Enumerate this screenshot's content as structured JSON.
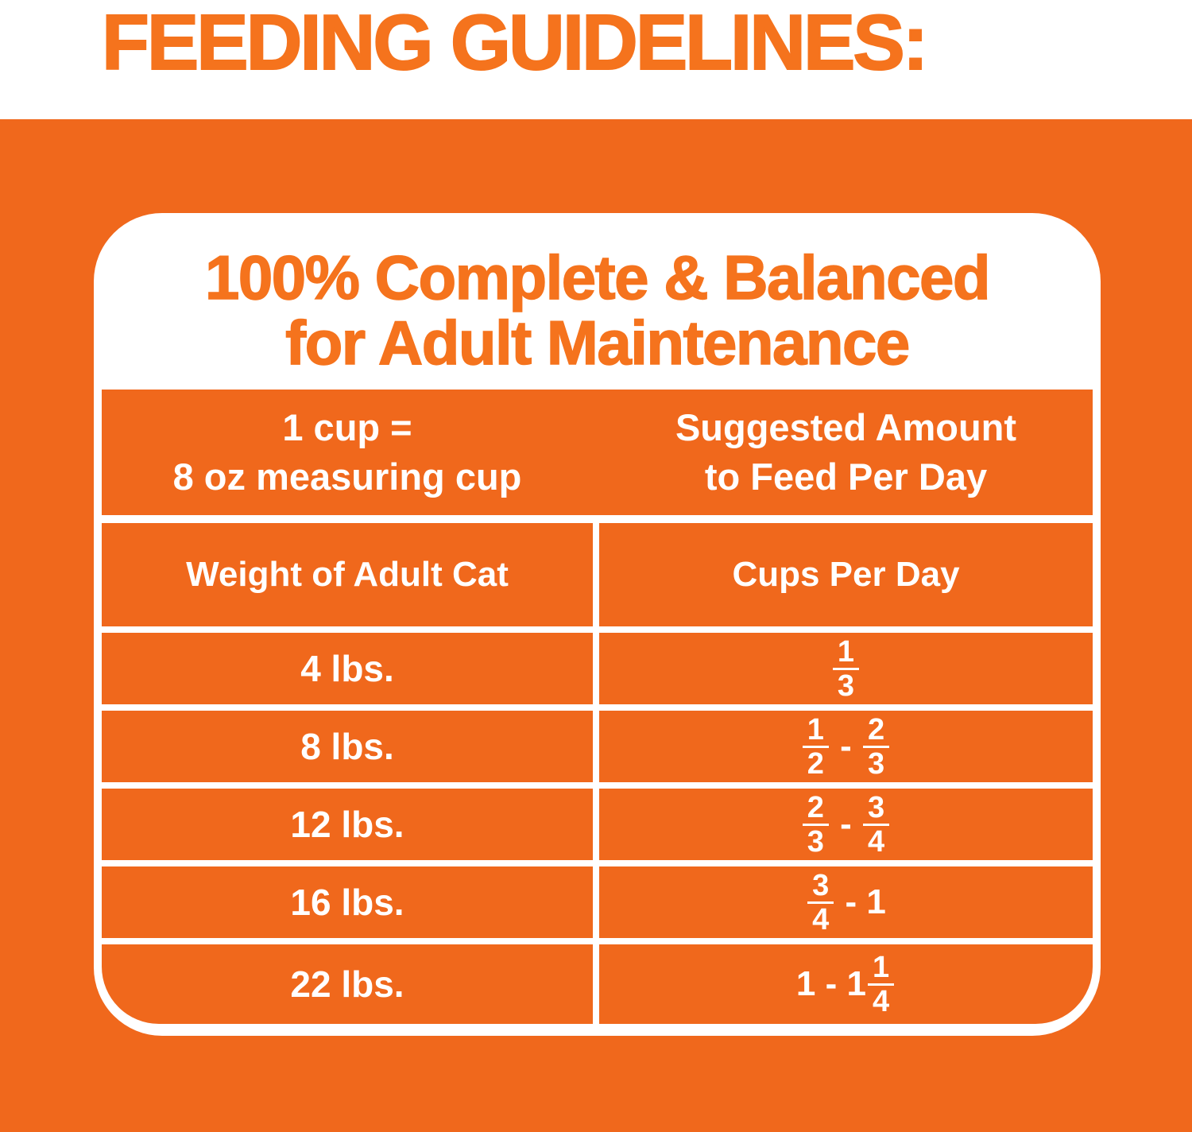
{
  "header": {
    "title": "FEEDING GUIDELINES:"
  },
  "colors": {
    "orange": "#F0681C",
    "accent": "#F5731D",
    "white": "#FFFFFF"
  },
  "card": {
    "title_line1": "100% Complete & Balanced",
    "title_line2": "for Adult Maintenance"
  },
  "band": {
    "left_line1": "1 cup =",
    "left_line2": "8 oz measuring cup",
    "right_line1": "Suggested Amount",
    "right_line2": "to Feed Per Day"
  },
  "table": {
    "col1_header": "Weight of Adult Cat",
    "col2_header": "Cups Per Day",
    "rows": [
      {
        "weight": "4 lbs.",
        "cups_text": "1/3",
        "cups_tokens": [
          "1/3"
        ]
      },
      {
        "weight": "8 lbs.",
        "cups_text": "1/2 - 2/3",
        "cups_tokens": [
          "1/2",
          " - ",
          "2/3"
        ]
      },
      {
        "weight": "12 lbs.",
        "cups_text": "2/3 - 3/4",
        "cups_tokens": [
          "2/3",
          " - ",
          "3/4"
        ]
      },
      {
        "weight": "16 lbs.",
        "cups_text": "3/4 - 1",
        "cups_tokens": [
          "3/4",
          " - 1"
        ]
      },
      {
        "weight": "22 lbs.",
        "cups_text": "1 - 1 1/4",
        "cups_tokens": [
          "1 - 1",
          "1/4"
        ]
      }
    ]
  }
}
